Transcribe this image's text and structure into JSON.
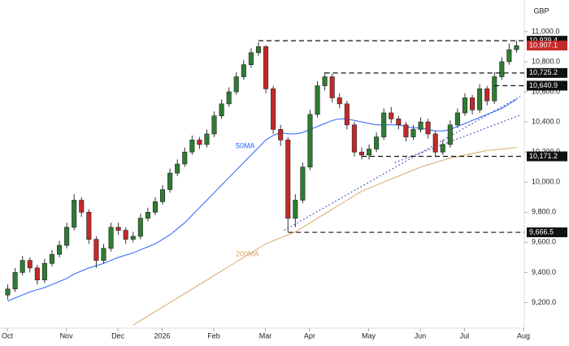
{
  "chart_data": {
    "type": "candlestick",
    "currency": "GBP",
    "xlim": [
      0,
      70
    ],
    "xticks": [
      {
        "value": 0,
        "label": "Oct"
      },
      {
        "value": 8,
        "label": "Nov"
      },
      {
        "value": 15,
        "label": "Dec"
      },
      {
        "value": 21,
        "label": "2026"
      },
      {
        "value": 28,
        "label": "Feb"
      },
      {
        "value": 35,
        "label": "Mar"
      },
      {
        "value": 41,
        "label": "Apr"
      },
      {
        "value": 49,
        "label": "May"
      },
      {
        "value": 56,
        "label": "Jun"
      },
      {
        "value": 62,
        "label": "Jul"
      },
      {
        "value": 70,
        "label": "Aug"
      }
    ],
    "ylim": [
      9030,
      11210
    ],
    "yticks": [
      {
        "value": 9200,
        "label": "9,200.0"
      },
      {
        "value": 9400,
        "label": "9,400.0"
      },
      {
        "value": 9600,
        "label": "9,600.0"
      },
      {
        "value": 9800,
        "label": "9,800.0"
      },
      {
        "value": 10000,
        "label": "10,000.0"
      },
      {
        "value": 10200,
        "label": "10,200.0"
      },
      {
        "value": 10400,
        "label": "10,400.0"
      },
      {
        "value": 10600,
        "label": "10,600.0"
      },
      {
        "value": 10800,
        "label": "10,800.0"
      },
      {
        "value": 11000,
        "label": "11,000.0"
      }
    ],
    "up_color": "#2e7d32",
    "down_color": "#c62828",
    "candles": {
      "open": [
        9250,
        9290,
        9400,
        9480,
        9430,
        9350,
        9460,
        9520,
        9580,
        9700,
        9880,
        9800,
        9620,
        9480,
        9560,
        9700,
        9680,
        9620,
        9640,
        9760,
        9800,
        9870,
        9950,
        10060,
        10120,
        10200,
        10280,
        10250,
        10320,
        10440,
        10520,
        10600,
        10700,
        10780,
        10860,
        10900,
        10620,
        10350,
        10280,
        9760,
        9880,
        10100,
        10450,
        10640,
        10700,
        10560,
        10520,
        10380,
        10200,
        10180,
        10220,
        10300,
        10460,
        10420,
        10380,
        10300,
        10350,
        10400,
        10320,
        10200,
        10250,
        10380,
        10460,
        10560,
        10480,
        10620,
        10540,
        10700,
        10800,
        10880
      ],
      "high": [
        9320,
        9430,
        9510,
        9500,
        9450,
        9490,
        9550,
        9610,
        9730,
        9920,
        9900,
        9820,
        9640,
        9590,
        9730,
        9730,
        9700,
        9670,
        9790,
        9830,
        9900,
        9980,
        10090,
        10150,
        10230,
        10310,
        10300,
        10350,
        10470,
        10550,
        10630,
        10730,
        10810,
        10890,
        10930,
        10910,
        10640,
        10380,
        10300,
        9920,
        10130,
        10480,
        10670,
        10730,
        10720,
        10590,
        10540,
        10400,
        10230,
        10250,
        10330,
        10490,
        10500,
        10440,
        10400,
        10380,
        10430,
        10420,
        10340,
        10280,
        10410,
        10490,
        10590,
        10580,
        10650,
        10640,
        10730,
        10830,
        10920,
        10939.4
      ],
      "low": [
        9220,
        9270,
        9380,
        9400,
        9320,
        9330,
        9440,
        9500,
        9560,
        9680,
        9770,
        9590,
        9430,
        9460,
        9540,
        9650,
        9590,
        9600,
        9620,
        9740,
        9780,
        9850,
        9930,
        10040,
        10100,
        10180,
        10220,
        10230,
        10300,
        10420,
        10500,
        10580,
        10680,
        10760,
        10840,
        10590,
        10320,
        10240,
        9670,
        9700,
        9860,
        10080,
        10430,
        10610,
        10530,
        10490,
        10350,
        10170,
        10150,
        10150,
        10200,
        10280,
        10390,
        10350,
        10270,
        10280,
        10330,
        10290,
        10170,
        10180,
        10230,
        10360,
        10440,
        10450,
        10460,
        10510,
        10520,
        10680,
        10780,
        10860
      ],
      "close": [
        9290,
        9400,
        9480,
        9430,
        9350,
        9460,
        9520,
        9580,
        9700,
        9880,
        9800,
        9620,
        9480,
        9560,
        9700,
        9680,
        9620,
        9640,
        9760,
        9800,
        9870,
        9950,
        10060,
        10120,
        10200,
        10280,
        10250,
        10320,
        10440,
        10520,
        10600,
        10700,
        10780,
        10860,
        10900,
        10620,
        10350,
        10280,
        9760,
        9880,
        10100,
        10450,
        10640,
        10700,
        10560,
        10520,
        10380,
        10200,
        10180,
        10220,
        10300,
        10460,
        10420,
        10380,
        10300,
        10350,
        10400,
        10320,
        10200,
        10250,
        10380,
        10460,
        10560,
        10480,
        10620,
        10540,
        10700,
        10800,
        10880,
        10907.1
      ]
    },
    "last_price_label": "10,907.1",
    "lines": [
      {
        "name": "50MA",
        "color": "#2962ff",
        "values": [
          9210,
          9230,
          9250,
          9270,
          9285,
          9300,
          9320,
          9340,
          9360,
          9390,
          9410,
          9430,
          9445,
          9460,
          9480,
          9500,
          9515,
          9530,
          9550,
          9570,
          9590,
          9620,
          9650,
          9690,
          9730,
          9780,
          9830,
          9880,
          9930,
          9980,
          10030,
          10080,
          10130,
          10180,
          10230,
          10280,
          10310,
          10330,
          10320,
          10320,
          10330,
          10350,
          10370,
          10390,
          10410,
          10420,
          10420,
          10410,
          10400,
          10390,
          10380,
          10380,
          10380,
          10380,
          10370,
          10360,
          10360,
          10350,
          10340,
          10340,
          10350,
          10370,
          10390,
          10410,
          10430,
          10450,
          10470,
          10490,
          10520,
          10550
        ]
      },
      {
        "name": "200MA",
        "color": "#d9a86c",
        "values": [
          null,
          null,
          null,
          null,
          null,
          null,
          null,
          null,
          null,
          null,
          null,
          null,
          null,
          null,
          null,
          null,
          null,
          9050,
          9080,
          9110,
          9140,
          9170,
          9200,
          9230,
          9260,
          9290,
          9320,
          9350,
          9380,
          9410,
          9440,
          9470,
          9500,
          9530,
          9560,
          9590,
          9610,
          9630,
          9650,
          9670,
          9700,
          9730,
          9760,
          9790,
          9820,
          9850,
          9880,
          9910,
          9940,
          9960,
          9980,
          10000,
          10020,
          10040,
          10060,
          10080,
          10100,
          10115,
          10130,
          10145,
          10160,
          10170,
          10180,
          10190,
          10200,
          10210,
          10215,
          10220,
          10225,
          10230
        ]
      }
    ],
    "levels": [
      {
        "value": 10939.4,
        "label": "10,939.4"
      },
      {
        "value": 10725.2,
        "label": "10,725.2"
      },
      {
        "value": 10640.9,
        "label": "10,640.9"
      },
      {
        "value": 10171.2,
        "label": "10,171.2"
      },
      {
        "value": 9666.5,
        "label": "9,666.5"
      }
    ],
    "trendlines": [
      {
        "x": [
          38,
          70
        ],
        "y": [
          9680,
          10570
        ]
      },
      {
        "x": [
          53,
          70
        ],
        "y": [
          10130,
          10445
        ]
      }
    ]
  }
}
